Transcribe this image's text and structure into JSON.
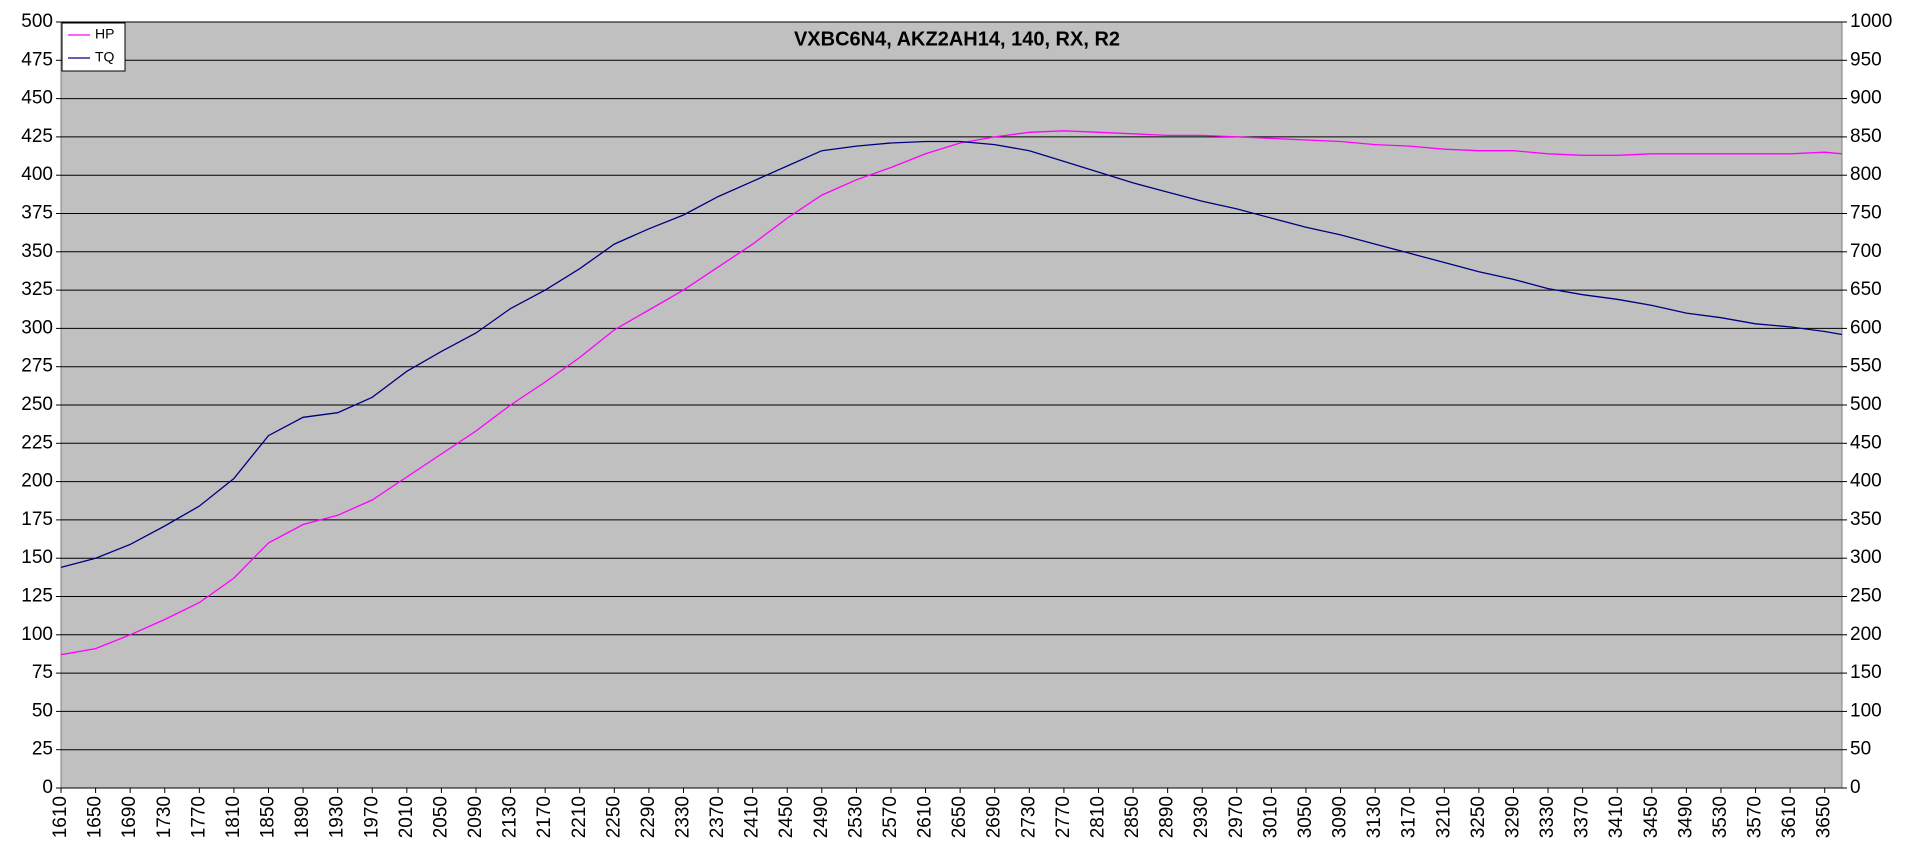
{
  "chart_data": {
    "type": "line",
    "title": "VXBC6N4, AKZ2AH14, 140,  RX, R2",
    "x": [
      1610,
      1650,
      1690,
      1730,
      1770,
      1810,
      1850,
      1890,
      1930,
      1970,
      2010,
      2050,
      2090,
      2130,
      2170,
      2210,
      2250,
      2290,
      2330,
      2370,
      2410,
      2450,
      2490,
      2530,
      2570,
      2610,
      2650,
      2690,
      2730,
      2770,
      2810,
      2850,
      2890,
      2930,
      2970,
      3010,
      3050,
      3090,
      3130,
      3170,
      3210,
      3250,
      3290,
      3330,
      3370,
      3410,
      3450,
      3490,
      3530,
      3570,
      3610,
      3650,
      3670
    ],
    "series": [
      {
        "name": "HP",
        "color": "#ff00ff",
        "values": [
          87,
          91,
          100,
          110,
          121,
          137,
          160,
          172,
          178,
          188,
          203,
          218,
          233,
          250,
          265,
          281,
          299,
          312,
          325,
          340,
          355,
          372,
          387,
          397,
          405,
          414,
          421,
          425,
          428,
          429,
          428,
          427,
          426,
          426,
          425,
          424,
          423,
          422,
          420,
          419,
          417,
          416,
          416,
          414,
          413,
          413,
          414,
          414,
          414,
          414,
          414,
          415,
          414
        ]
      },
      {
        "name": "TQ",
        "color": "#000080",
        "axis": "y2",
        "values": [
          288,
          300,
          318,
          342,
          368,
          404,
          460,
          484,
          490,
          510,
          544,
          570,
          594,
          626,
          650,
          678,
          710,
          730,
          748,
          772,
          792,
          812,
          832,
          838,
          842,
          844,
          844,
          840,
          832,
          818,
          804,
          790,
          778,
          766,
          756,
          744,
          732,
          722,
          710,
          698,
          686,
          674,
          664,
          652,
          644,
          638,
          630,
          620,
          614,
          606,
          602,
          596,
          592
        ]
      }
    ],
    "xlim": [
      1610,
      3670
    ],
    "xticks": [
      1610,
      1650,
      1690,
      1730,
      1770,
      1810,
      1850,
      1890,
      1930,
      1970,
      2010,
      2050,
      2090,
      2130,
      2170,
      2210,
      2250,
      2290,
      2330,
      2370,
      2410,
      2450,
      2490,
      2530,
      2570,
      2610,
      2650,
      2690,
      2730,
      2770,
      2810,
      2850,
      2890,
      2930,
      2970,
      3010,
      3050,
      3090,
      3130,
      3170,
      3210,
      3250,
      3290,
      3330,
      3370,
      3410,
      3450,
      3490,
      3530,
      3570,
      3610,
      3650
    ],
    "ylim": [
      0,
      500
    ],
    "yticks": [
      0,
      25,
      50,
      75,
      100,
      125,
      150,
      175,
      200,
      225,
      250,
      275,
      300,
      325,
      350,
      375,
      400,
      425,
      450,
      475,
      500
    ],
    "y2lim": [
      0,
      1000
    ],
    "y2ticks": [
      0,
      50,
      100,
      150,
      200,
      250,
      300,
      350,
      400,
      450,
      500,
      550,
      600,
      650,
      700,
      750,
      800,
      850,
      900,
      950,
      1000
    ],
    "grid": true,
    "legend": "top-left",
    "background": "#c0c0c0"
  }
}
